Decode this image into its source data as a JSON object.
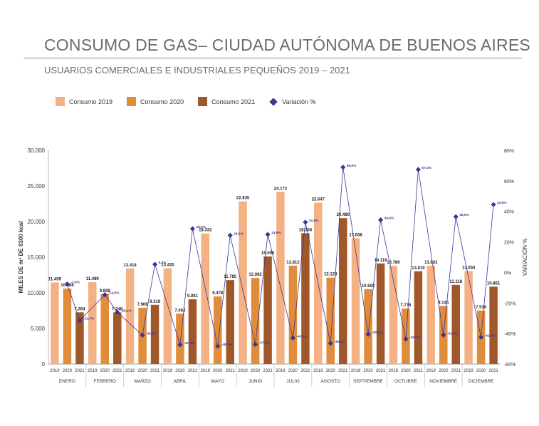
{
  "header": {
    "title": "CONSUMO DE GAS– CIUDAD AUTÓNOMA DE BUENOS AIRES",
    "subtitle": "USUARIOS COMERCIALES E INDUSTRIALES PEQUEÑOS 2019 – 2021"
  },
  "legend": {
    "items": [
      {
        "label": "Consumo 2019",
        "color": "#f4b183",
        "shape": "square"
      },
      {
        "label": "Consumo 2020",
        "color": "#e08c3a",
        "shape": "square"
      },
      {
        "label": "Consumo 2021",
        "color": "#a0582a",
        "shape": "square"
      },
      {
        "label": "Variación %",
        "color": "#3a3596",
        "shape": "diamond"
      }
    ]
  },
  "chart_data": {
    "type": "bar",
    "categories": [
      "ENERO",
      "FEBRERO",
      "MARZO",
      "ABRIL",
      "MAYO",
      "JUNIO",
      "JULIO",
      "AGOSTO",
      "SEPTIEMBRE",
      "OCTUBRE",
      "NOVIEMBRE",
      "DICIEMBRE"
    ],
    "sub_categories": [
      "2019",
      "2020",
      "2021"
    ],
    "series": [
      {
        "name": "Consumo 2019",
        "color": "#f4b183",
        "values": [
          11459,
          11489,
          13414,
          13435,
          18332,
          22835,
          24172,
          22647,
          17658,
          13786,
          13802,
          13050
        ],
        "labels": [
          "11.459",
          "11.489",
          "13.414",
          "13.435",
          "18.332",
          "22.835",
          "24.172",
          "22.647",
          "17.658",
          "13.786",
          "13.802",
          "13.050"
        ]
      },
      {
        "name": "Consumo 2020",
        "color": "#e08c3a",
        "values": [
          10588,
          9808,
          7900,
          7062,
          9478,
          12082,
          13812,
          12128,
          10502,
          7776,
          8145,
          7516
        ],
        "labels": [
          "10.588",
          "9.808",
          "7.900",
          "7.062",
          "9.478",
          "12.082",
          "13.812",
          "12.128",
          "10.502",
          "7.776",
          "8.145",
          "7.516"
        ]
      },
      {
        "name": "Consumo 2021",
        "color": "#a0582a",
        "values": [
          7264,
          7248,
          8318,
          9081,
          11785,
          15095,
          18356,
          20480,
          14116,
          13019,
          11118,
          10861
        ],
        "labels": [
          "7.264",
          "7.248",
          "8.318",
          "9.081",
          "11.785",
          "15.095",
          "18.356",
          "20.480",
          "14.116",
          "13.019",
          "11.118",
          "10.861"
        ]
      }
    ],
    "variation": {
      "name": "Variación %",
      "color": "#3a3596",
      "points": [
        {
          "month": 0,
          "year": "2020",
          "value": -7.6,
          "label": "-7,6%"
        },
        {
          "month": 0,
          "year": "2021",
          "value": -31.4,
          "label": "-31,4%"
        },
        {
          "month": 1,
          "year": "2020",
          "value": -14.6,
          "label": "-14,6%"
        },
        {
          "month": 1,
          "year": "2021",
          "value": -26.1,
          "label": "-26,1%"
        },
        {
          "month": 2,
          "year": "2020",
          "value": -41.1,
          "label": "-41,1%"
        },
        {
          "month": 2,
          "year": "2021",
          "value": 5.3,
          "label": "5,3%"
        },
        {
          "month": 3,
          "year": "2020",
          "value": -47.4,
          "label": "-47,4%"
        },
        {
          "month": 3,
          "year": "2021",
          "value": 28.6,
          "label": "28,6%"
        },
        {
          "month": 4,
          "year": "2020",
          "value": -48.3,
          "label": "-48,3%"
        },
        {
          "month": 4,
          "year": "2021",
          "value": 24.3,
          "label": "24,3%"
        },
        {
          "month": 5,
          "year": "2020",
          "value": -47.1,
          "label": "-47,1%"
        },
        {
          "month": 5,
          "year": "2021",
          "value": 24.9,
          "label": "24,9%"
        },
        {
          "month": 6,
          "year": "2020",
          "value": -42.9,
          "label": "-42,9%"
        },
        {
          "month": 6,
          "year": "2021",
          "value": 32.9,
          "label": "32,9%"
        },
        {
          "month": 7,
          "year": "2020",
          "value": -46.4,
          "label": "-46,4%"
        },
        {
          "month": 7,
          "year": "2021",
          "value": 68.9,
          "label": "68,9%"
        },
        {
          "month": 8,
          "year": "2020",
          "value": -40.5,
          "label": "-40,5%"
        },
        {
          "month": 8,
          "year": "2021",
          "value": 34.4,
          "label": "34,4%"
        },
        {
          "month": 9,
          "year": "2020",
          "value": -43.6,
          "label": "-43,6%"
        },
        {
          "month": 9,
          "year": "2021",
          "value": 67.4,
          "label": "67,4%"
        },
        {
          "month": 10,
          "year": "2020",
          "value": -41.0,
          "label": "-41,0%"
        },
        {
          "month": 10,
          "year": "2021",
          "value": 36.5,
          "label": "36,5%"
        },
        {
          "month": 11,
          "year": "2020",
          "value": -42.4,
          "label": "-42,4%"
        },
        {
          "month": 11,
          "year": "2021",
          "value": 44.5,
          "label": "44,5%"
        }
      ]
    },
    "y_left": {
      "label": "MILES DE m³ DE 9300 kcal",
      "ticks": [
        0,
        5000,
        10000,
        15000,
        20000,
        25000,
        30000
      ],
      "tick_labels": [
        "0",
        "5.000",
        "10.000",
        "15.000",
        "20.000",
        "25.000",
        "30.000"
      ],
      "ylim": [
        0,
        30000
      ]
    },
    "y_right": {
      "label": "VARIACIÓN %",
      "ticks": [
        -60,
        -40,
        -20,
        0,
        20,
        40,
        60,
        80
      ],
      "tick_labels": [
        "-60%",
        "-40%",
        "-20%",
        "0%",
        "20%",
        "40%",
        "60%",
        "80%"
      ],
      "ylim": [
        -60,
        80
      ]
    },
    "grid": false,
    "legend_position": "top-left"
  }
}
